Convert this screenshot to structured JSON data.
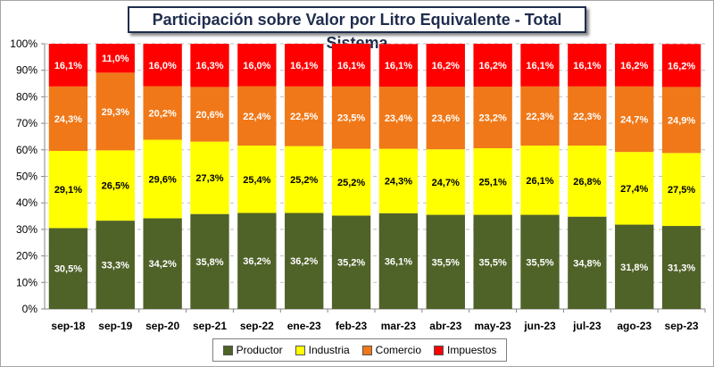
{
  "chart_data": {
    "type": "bar",
    "stacked": true,
    "title": "Participación sobre Valor por Litro Equivalente - Total Sistema",
    "categories": [
      "sep-18",
      "sep-19",
      "sep-20",
      "sep-21",
      "sep-22",
      "ene-23",
      "feb-23",
      "mar-23",
      "abr-23",
      "may-23",
      "jun-23",
      "jul-23",
      "ago-23",
      "sep-23"
    ],
    "series": [
      {
        "name": "Productor",
        "color": "#4f6228",
        "label_color": "#ffffff",
        "values": [
          30.5,
          33.3,
          34.2,
          35.8,
          36.2,
          36.2,
          35.2,
          36.1,
          35.5,
          35.5,
          35.5,
          34.8,
          31.8,
          31.3
        ]
      },
      {
        "name": "Industria",
        "color": "#ffff00",
        "label_color": "#000000",
        "values": [
          29.1,
          26.5,
          29.6,
          27.3,
          25.4,
          25.2,
          25.2,
          24.3,
          24.7,
          25.1,
          26.1,
          26.8,
          27.4,
          27.5
        ]
      },
      {
        "name": "Comercio",
        "color": "#f07818",
        "label_color": "#ffffff",
        "values": [
          24.3,
          29.3,
          20.2,
          20.6,
          22.4,
          22.5,
          23.5,
          23.4,
          23.6,
          23.2,
          22.3,
          22.3,
          24.7,
          24.9
        ]
      },
      {
        "name": "Impuestos",
        "color": "#ff0000",
        "label_color": "#ffffff",
        "values": [
          16.1,
          11.0,
          16.0,
          16.3,
          16.0,
          16.1,
          16.1,
          16.1,
          16.2,
          16.2,
          16.1,
          16.1,
          16.2,
          16.2
        ]
      }
    ],
    "ylim": [
      0,
      100
    ],
    "yticks": [
      "0%",
      "10%",
      "20%",
      "30%",
      "40%",
      "50%",
      "60%",
      "70%",
      "80%",
      "90%",
      "100%"
    ],
    "data_label_format": "comma-decimal percent",
    "grid": true,
    "legend_position": "bottom"
  }
}
